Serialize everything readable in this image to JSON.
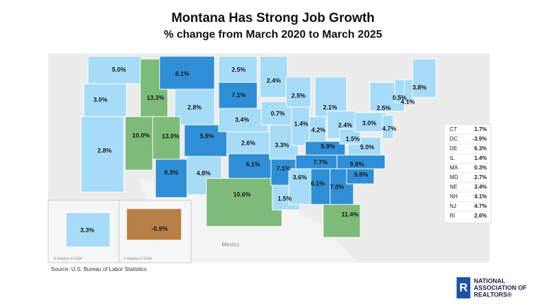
{
  "title": "Montana Has Strong Job Growth",
  "subtitle": "% change from March 2020 to March 2025",
  "states": [
    {
      "label": "5.0%",
      "value": 5.0,
      "color": "#a6dcf7"
    },
    {
      "label": "3.0%",
      "value": 3.0,
      "color": "#a6dcf7"
    },
    {
      "label": "2.8%",
      "value": 2.8,
      "color": "#a6dcf7"
    },
    {
      "label": "10.0%",
      "value": 10.0,
      "color": "#7dbb78"
    },
    {
      "label": "13.3%",
      "value": 13.3,
      "color": "#7dbb78"
    },
    {
      "label": "8.1%",
      "value": 8.1,
      "color": "#2f8fd6"
    },
    {
      "label": "2.8%",
      "value": 2.8,
      "color": "#a6dcf7"
    },
    {
      "label": "13.0%",
      "value": 13.0,
      "color": "#7dbb78"
    },
    {
      "label": "9.3%",
      "value": 9.3,
      "color": "#2f8fd6"
    },
    {
      "label": "5.9%",
      "value": 5.9,
      "color": "#2f8fd6"
    },
    {
      "label": "4.8%",
      "value": 4.8,
      "color": "#a6dcf7"
    },
    {
      "label": "2.5%",
      "value": 2.5,
      "color": "#a6dcf7"
    },
    {
      "label": "7.1%",
      "value": 7.1,
      "color": "#2f8fd6"
    },
    {
      "label": "3.4%",
      "value": 3.4,
      "color": "#a6dcf7"
    },
    {
      "label": "2.6%",
      "value": 2.6,
      "color": "#a6dcf7"
    },
    {
      "label": "6.1%",
      "value": 6.1,
      "color": "#2f8fd6"
    },
    {
      "label": "10.6%",
      "value": 10.6,
      "color": "#7dbb78"
    },
    {
      "label": "2.4%",
      "value": 2.4,
      "color": "#a6dcf7"
    },
    {
      "label": "0.7%",
      "value": 0.7,
      "color": "#a6dcf7"
    },
    {
      "label": "3.3%",
      "value": 3.3,
      "color": "#a6dcf7"
    },
    {
      "label": "7.1%",
      "value": 7.1,
      "color": "#2f8fd6"
    },
    {
      "label": "1.5%",
      "value": 1.5,
      "color": "#a6dcf7"
    },
    {
      "label": "2.5%",
      "value": 2.5,
      "color": "#a6dcf7"
    },
    {
      "label": "1.4%",
      "value": 1.4,
      "color": "#a6dcf7"
    },
    {
      "label": "2.1%",
      "value": 2.1,
      "color": "#a6dcf7"
    },
    {
      "label": "4.2%",
      "value": 4.2,
      "color": "#a6dcf7"
    },
    {
      "label": "2.4%",
      "value": 2.4,
      "color": "#a6dcf7"
    },
    {
      "label": "5.9%",
      "value": 5.9,
      "color": "#2f8fd6"
    },
    {
      "label": "7.7%",
      "value": 7.7,
      "color": "#2f8fd6"
    },
    {
      "label": "3.6%",
      "value": 3.6,
      "color": "#a6dcf7"
    },
    {
      "label": "6.1%",
      "value": 6.1,
      "color": "#2f8fd6"
    },
    {
      "label": "7.0%",
      "value": 7.0,
      "color": "#2f8fd6"
    },
    {
      "label": "11.4%",
      "value": 11.4,
      "color": "#7dbb78"
    },
    {
      "label": "9.8%",
      "value": 9.8,
      "color": "#2f8fd6"
    },
    {
      "label": "9.8%",
      "value": 9.8,
      "color": "#2f8fd6"
    },
    {
      "label": "5.0%",
      "value": 5.0,
      "color": "#a6dcf7"
    },
    {
      "label": "1.5%",
      "value": 1.5,
      "color": "#a6dcf7"
    },
    {
      "label": "3.0%",
      "value": 3.0,
      "color": "#a6dcf7"
    },
    {
      "label": "2.5%",
      "value": 2.5,
      "color": "#a6dcf7"
    },
    {
      "label": "0.5%",
      "value": 0.5,
      "color": "#a6dcf7"
    },
    {
      "label": "4.1%",
      "value": 4.1,
      "color": "#a6dcf7"
    },
    {
      "label": "3.8%",
      "value": 3.8,
      "color": "#a6dcf7"
    },
    {
      "label": "4.7%",
      "value": 4.7,
      "color": "#a6dcf7"
    },
    {
      "label": "3.3%",
      "value": 3.3,
      "color": "#a6dcf7"
    },
    {
      "label": "-0.9%",
      "value": -0.9,
      "color": "#b67f45"
    }
  ],
  "table": [
    [
      "CT",
      "1.7%"
    ],
    [
      "DC",
      "-3.9%"
    ],
    [
      "DE",
      "6.3%"
    ],
    [
      "IL",
      "1.4%"
    ],
    [
      "MA",
      "0.3%"
    ],
    [
      "MD",
      "2.7%"
    ],
    [
      "NE",
      "3.4%"
    ],
    [
      "NH",
      "4.1%"
    ],
    [
      "NJ",
      "4.7%"
    ],
    [
      "RI",
      "2.6%"
    ]
  ],
  "basemap_labels": [
    "Mexico",
    "© Mapbox © OSM",
    "© Mapbox © OSM"
  ],
  "source": "Source: U.S. Bureau of Labor Statistics",
  "logo": {
    "letter": "R",
    "lines": [
      "NATIONAL",
      "ASSOCIATION OF",
      "REALTORS®"
    ]
  }
}
